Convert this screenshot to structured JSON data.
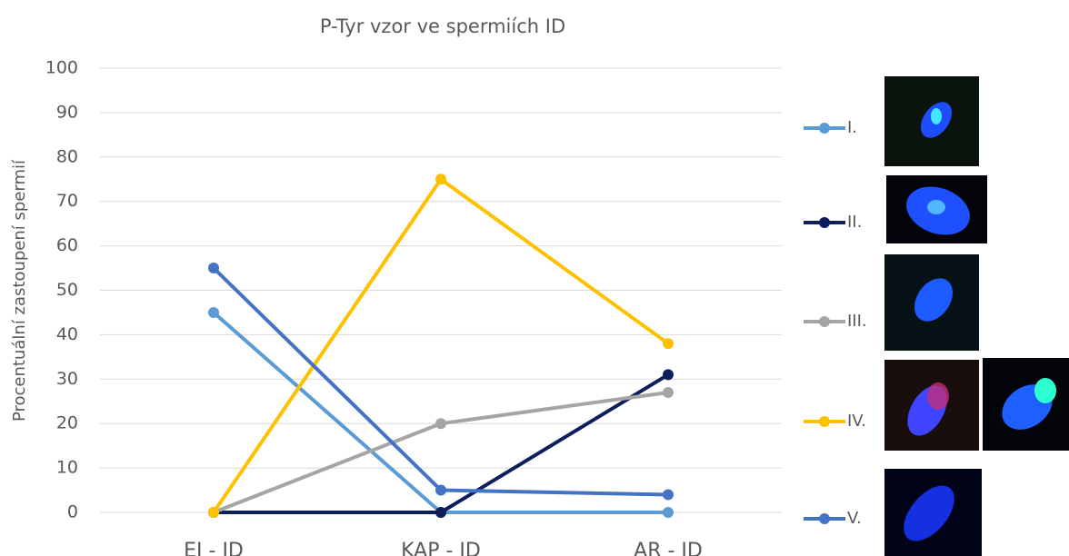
{
  "chart_data": {
    "type": "line",
    "title": "P-Tyr vzor ve spermiích ID",
    "y_label": "Procentuální zastoupení spermií",
    "categories": [
      "EJ - ID",
      "KAP - ID",
      "AR - ID"
    ],
    "series": [
      {
        "name": "I.",
        "color": "#5b9bd5",
        "values": [
          45,
          0,
          0
        ]
      },
      {
        "name": "II.",
        "color": "#0c1f5c",
        "values": [
          0,
          0,
          31
        ]
      },
      {
        "name": "III.",
        "color": "#a5a5a5",
        "values": [
          0,
          20,
          27
        ]
      },
      {
        "name": "IV.",
        "color": "#ffc000",
        "values": [
          0,
          75,
          38
        ]
      },
      {
        "name": "V.",
        "color": "#4472c4",
        "values": [
          55,
          5,
          4
        ]
      }
    ],
    "ylim": [
      0,
      100
    ],
    "yticks": [
      0,
      10,
      20,
      30,
      40,
      50,
      60,
      70,
      80,
      90,
      100
    ],
    "grid": true,
    "legend": "right"
  }
}
